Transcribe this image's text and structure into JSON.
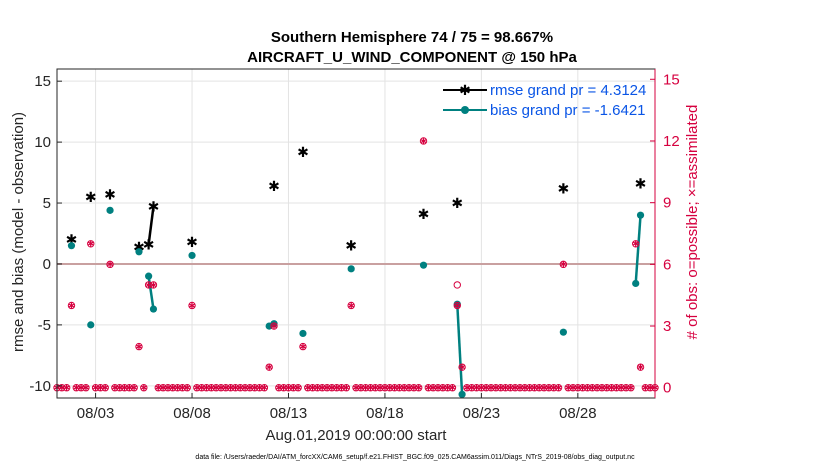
{
  "chart_data": {
    "type": "line",
    "title": "Southern Hemisphere 74 / 75 = 98.667%",
    "subtitle": "AIRCRAFT_U_WIND_COMPONENT @ 150 hPa",
    "xlabel": "Aug.01,2019 00:00:00 start",
    "ylabel": "rmse and bias (model - observation)",
    "ylabel_right": "# of obs: o=possible; ×=assimilated",
    "footer": "data file: /Users/raeder/DAI/ATM_forcXX/CAM6_setup/f.e21.FHIST_BGC.f09_025.CAM6assim.011/Diags_NTrS_2019-08/obs_diag_output.nc",
    "x_ticks": [
      {
        "value": 3,
        "label": "08/03"
      },
      {
        "value": 8,
        "label": "08/08"
      },
      {
        "value": 13,
        "label": "08/13"
      },
      {
        "value": 18,
        "label": "08/18"
      },
      {
        "value": 23,
        "label": "08/23"
      },
      {
        "value": 28,
        "label": "08/28"
      }
    ],
    "xlim": [
      1,
      32
    ],
    "ylim": [
      -11,
      16
    ],
    "ylim_right": [
      -0.5,
      15.5
    ],
    "y_ticks": [
      "-10",
      "-5",
      "0",
      "5",
      "10",
      "15"
    ],
    "y_ticks_right": [
      "0",
      "3",
      "6",
      "9",
      "12",
      "15"
    ],
    "legend": [
      "rmse grand pr = 4.3124",
      "bias grand pr = -1.6421"
    ],
    "series": [
      {
        "name": "rmse",
        "color": "#000000",
        "points": [
          [
            1.75,
            2.0
          ],
          [
            2.75,
            5.5
          ],
          [
            3.75,
            5.7
          ],
          [
            5.25,
            1.4
          ],
          [
            5.75,
            1.6
          ],
          [
            6.0,
            4.7
          ],
          [
            8.0,
            1.8
          ],
          [
            12.25,
            6.4
          ],
          [
            13.75,
            9.2
          ],
          [
            16.25,
            1.5
          ],
          [
            20.0,
            4.1
          ],
          [
            21.75,
            5.0
          ],
          [
            27.25,
            6.2
          ],
          [
            31.25,
            6.6
          ]
        ],
        "segments": [
          [
            [
              5.75,
              1.6
            ],
            [
              6.0,
              4.7
            ]
          ]
        ]
      },
      {
        "name": "bias",
        "color": "#008080",
        "points": [
          [
            1.75,
            1.5
          ],
          [
            2.75,
            -5.0
          ],
          [
            3.75,
            4.4
          ],
          [
            5.25,
            1.0
          ],
          [
            5.75,
            -1.0
          ],
          [
            6.0,
            -3.7
          ],
          [
            8.0,
            0.7
          ],
          [
            12.0,
            -5.1
          ],
          [
            12.25,
            -4.9
          ],
          [
            13.75,
            -5.7
          ],
          [
            16.25,
            -0.4
          ],
          [
            20.0,
            -0.1
          ],
          [
            21.75,
            -3.3
          ],
          [
            22.0,
            -10.7
          ],
          [
            27.25,
            -5.6
          ],
          [
            31.0,
            -1.6
          ],
          [
            31.25,
            4.0
          ]
        ],
        "segments": [
          [
            [
              5.75,
              -1.0
            ],
            [
              6.0,
              -3.7
            ]
          ],
          [
            [
              21.75,
              -3.3
            ],
            [
              22.0,
              -10.7
            ]
          ],
          [
            [
              31.0,
              -1.6
            ],
            [
              31.25,
              4.0
            ]
          ]
        ]
      },
      {
        "name": "obs_assimilated",
        "color": "#d6003f",
        "points": [
          [
            1.75,
            4
          ],
          [
            2.75,
            7
          ],
          [
            3.75,
            6
          ],
          [
            5.25,
            2
          ],
          [
            5.75,
            5
          ],
          [
            6.0,
            5
          ],
          [
            8.0,
            4
          ],
          [
            12.0,
            1
          ],
          [
            12.25,
            3
          ],
          [
            13.75,
            2
          ],
          [
            16.25,
            4
          ],
          [
            20.0,
            12
          ],
          [
            21.75,
            4
          ],
          [
            22.0,
            1
          ],
          [
            27.25,
            6
          ],
          [
            31.0,
            7
          ],
          [
            31.25,
            1
          ]
        ]
      },
      {
        "name": "obs_possible_extra",
        "color": "#d6003f",
        "points": [
          [
            21.75,
            5
          ]
        ]
      }
    ],
    "zero_count_days": [
      1.0,
      1.25,
      1.5,
      2.0,
      2.25,
      2.5,
      3.0,
      3.25,
      3.5,
      4.0,
      4.25,
      4.5,
      4.75,
      5.0,
      5.5,
      6.25,
      6.5,
      6.75,
      7.0,
      7.25,
      7.5,
      7.75,
      8.25,
      8.5,
      8.75,
      9.0,
      9.25,
      9.5,
      9.75,
      10.0,
      10.25,
      10.5,
      10.75,
      11.0,
      11.25,
      11.5,
      11.75,
      12.5,
      12.75,
      13.0,
      13.25,
      13.5,
      14.0,
      14.25,
      14.5,
      14.75,
      15.0,
      15.25,
      15.5,
      15.75,
      16.0,
      16.5,
      16.75,
      17.0,
      17.25,
      17.5,
      17.75,
      18.0,
      18.25,
      18.5,
      18.75,
      19.0,
      19.25,
      19.5,
      19.75,
      20.25,
      20.5,
      20.75,
      21.0,
      21.25,
      21.5,
      22.25,
      22.5,
      22.75,
      23.0,
      23.25,
      23.5,
      23.75,
      24.0,
      24.25,
      24.5,
      24.75,
      25.0,
      25.25,
      25.5,
      25.75,
      26.0,
      26.25,
      26.5,
      26.75,
      27.0,
      27.5,
      27.75,
      28.0,
      28.25,
      28.5,
      28.75,
      29.0,
      29.25,
      29.5,
      29.75,
      30.0,
      30.25,
      30.5,
      30.75,
      31.5,
      31.75,
      32.0
    ]
  }
}
